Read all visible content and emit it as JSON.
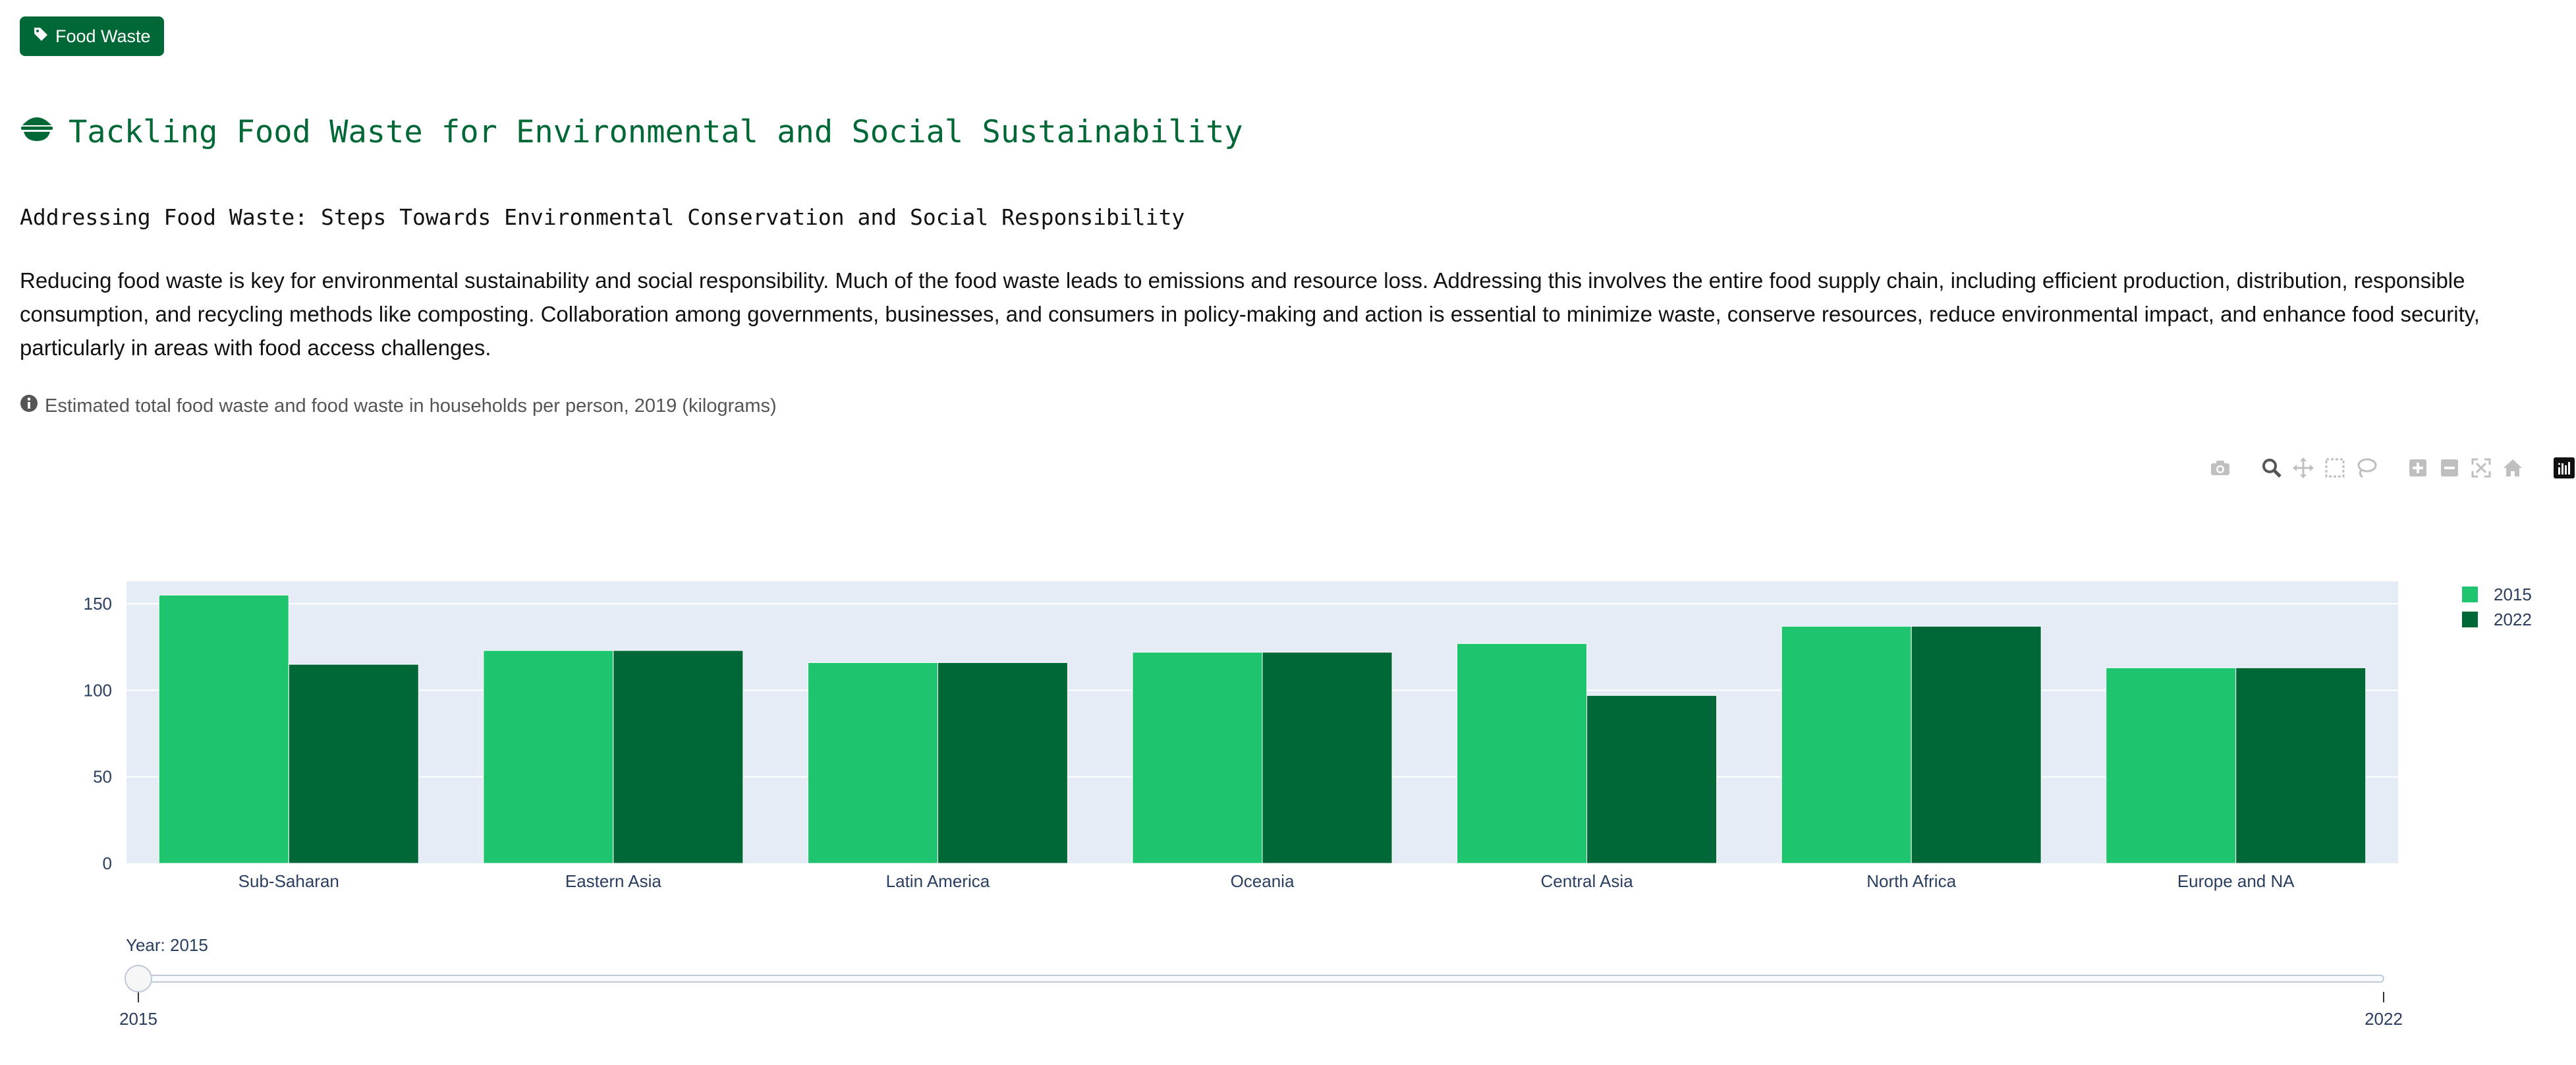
{
  "tag": {
    "label": "Food Waste",
    "icon": "tag-icon"
  },
  "title": {
    "text": "Tackling Food Waste for Environmental and Social Sustainability",
    "icon": "bowl-icon"
  },
  "subtitle": "Addressing Food Waste: Steps Towards Environmental Conservation and Social Responsibility",
  "description": "Reducing food waste is key for environmental sustainability and social responsibility. Much of the food waste leads to emissions and resource loss. Addressing this involves the entire food supply chain, including efficient production, distribution, responsible consumption, and recycling methods like composting. Collaboration among governments, businesses, and consumers in policy-making and action is essential to minimize waste, conserve resources, reduce environmental impact, and enhance food security, particularly in areas with food access challenges.",
  "note": {
    "text": "Estimated total food waste and food waste in households per person, 2019 (kilograms)",
    "icon": "info-circle-icon"
  },
  "modebar": [
    "camera-icon",
    "zoom-icon",
    "pan-icon",
    "box-select-icon",
    "lasso-icon",
    "zoom-in-icon",
    "zoom-out-icon",
    "autoscale-icon",
    "reset-axes-icon",
    "plotly-logo-icon"
  ],
  "colors": {
    "accent": "#006837",
    "series_2015": "#1fc46e",
    "series_2022": "#006837",
    "plot_bg": "#e5ecf6"
  },
  "chart_data": {
    "type": "bar",
    "categories": [
      "Sub-Saharan",
      "Eastern Asia",
      "Latin America",
      "Oceania",
      "Central Asia",
      "North Africa",
      "Europe and NA"
    ],
    "series": [
      {
        "name": "2015",
        "values": [
          155,
          123,
          116,
          122,
          127,
          137,
          113
        ]
      },
      {
        "name": "2022",
        "values": [
          115,
          123,
          116,
          122,
          97,
          137,
          113
        ]
      }
    ],
    "title": "",
    "xlabel": "",
    "ylabel": "",
    "ylim": [
      0,
      163
    ],
    "yticks": [
      0,
      50,
      100,
      150
    ],
    "grid": true,
    "legend": "top-right",
    "slider": {
      "label": "Year: 2015",
      "ticks": [
        "2015",
        "2022"
      ],
      "selected": "2015"
    }
  }
}
